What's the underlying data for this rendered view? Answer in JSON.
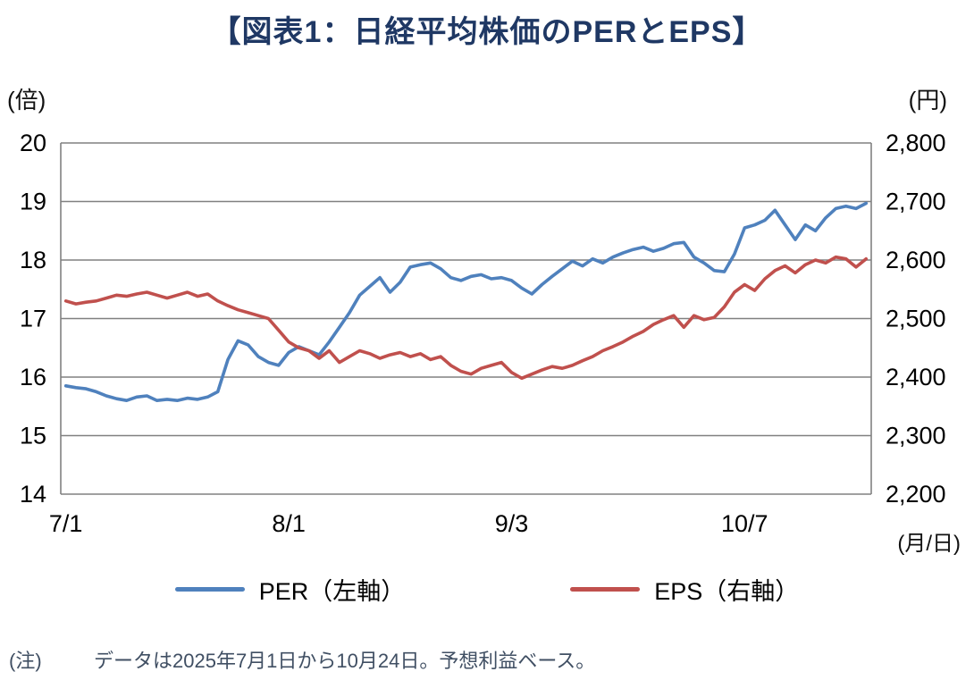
{
  "title": "【図表1：日経平均株価のPERとEPS】",
  "axis_units": {
    "left": "(倍)",
    "right": "(円)",
    "x": "(月/日)"
  },
  "legend": [
    {
      "label": "PER（左軸）",
      "color": "#4F81BD"
    },
    {
      "label": "EPS（右軸）",
      "color": "#C0504D"
    }
  ],
  "note": {
    "prefix": "(注)",
    "text": "データは2025年7月1日から10月24日。予想利益ベース。"
  },
  "colors": {
    "title": "#1F3864",
    "grid": "#808080",
    "axis_text": "#000000"
  },
  "chart_data": {
    "type": "line",
    "title": "図表1：日経平均株価のPERとEPS",
    "grid": "horizontal",
    "legend_position": "bottom",
    "n_points": 80,
    "x_tick_labels": [
      "7/1",
      "8/1",
      "9/3",
      "10/7"
    ],
    "x_tick_indices": [
      0,
      22,
      44,
      67
    ],
    "left_axis": {
      "label": "倍",
      "min": 14,
      "max": 20,
      "ticks": [
        14,
        15,
        16,
        17,
        18,
        19,
        20
      ],
      "tick_labels": [
        "14",
        "15",
        "16",
        "17",
        "18",
        "19",
        "20"
      ]
    },
    "right_axis": {
      "label": "円",
      "min": 2200,
      "max": 2800,
      "ticks": [
        2200,
        2300,
        2400,
        2500,
        2600,
        2700,
        2800
      ],
      "tick_labels": [
        "2,200",
        "2,300",
        "2,400",
        "2,500",
        "2,600",
        "2,700",
        "2,800"
      ]
    },
    "series": [
      {
        "name": "PER（左軸）",
        "axis": "left",
        "color": "#4F81BD",
        "values": [
          15.85,
          15.82,
          15.8,
          15.75,
          15.68,
          15.63,
          15.6,
          15.66,
          15.68,
          15.6,
          15.62,
          15.6,
          15.64,
          15.62,
          15.66,
          15.75,
          16.3,
          16.62,
          16.55,
          16.35,
          16.25,
          16.2,
          16.42,
          16.52,
          16.45,
          16.38,
          16.6,
          16.85,
          17.1,
          17.4,
          17.55,
          17.7,
          17.45,
          17.62,
          17.88,
          17.92,
          17.95,
          17.85,
          17.7,
          17.65,
          17.72,
          17.75,
          17.68,
          17.7,
          17.65,
          17.52,
          17.42,
          17.58,
          17.72,
          17.85,
          17.98,
          17.9,
          18.02,
          17.95,
          18.05,
          18.12,
          18.18,
          18.22,
          18.15,
          18.2,
          18.28,
          18.3,
          18.05,
          17.95,
          17.82,
          17.8,
          18.1,
          18.55,
          18.6,
          18.68,
          18.85,
          18.6,
          18.35,
          18.6,
          18.5,
          18.72,
          18.88,
          18.92,
          18.88,
          18.97
        ]
      },
      {
        "name": "EPS（右軸）",
        "axis": "right",
        "color": "#C0504D",
        "values": [
          2530,
          2525,
          2528,
          2530,
          2535,
          2540,
          2538,
          2542,
          2545,
          2540,
          2535,
          2540,
          2545,
          2538,
          2542,
          2530,
          2522,
          2515,
          2510,
          2505,
          2500,
          2480,
          2460,
          2450,
          2445,
          2432,
          2445,
          2425,
          2435,
          2445,
          2440,
          2432,
          2438,
          2442,
          2435,
          2440,
          2430,
          2435,
          2420,
          2410,
          2405,
          2415,
          2420,
          2425,
          2408,
          2398,
          2405,
          2412,
          2418,
          2415,
          2420,
          2428,
          2435,
          2445,
          2452,
          2460,
          2470,
          2478,
          2490,
          2498,
          2505,
          2485,
          2505,
          2498,
          2502,
          2520,
          2545,
          2558,
          2548,
          2568,
          2582,
          2590,
          2578,
          2592,
          2600,
          2595,
          2605,
          2602,
          2588,
          2602
        ]
      }
    ]
  }
}
